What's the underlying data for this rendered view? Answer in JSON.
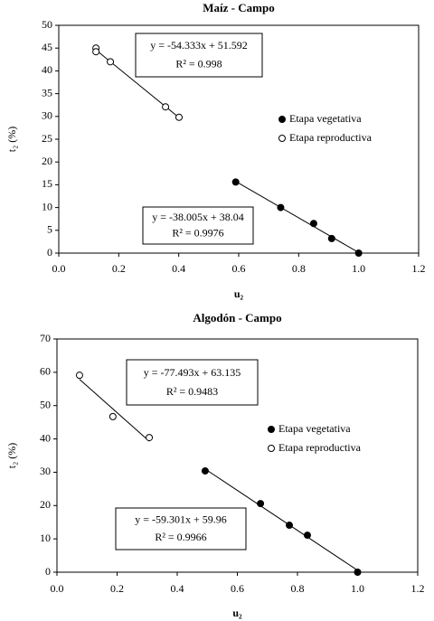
{
  "chart_data": [
    {
      "type": "scatter",
      "title": "Maíz - Campo",
      "x_label": "u₂",
      "y_label": "t₂ (%)",
      "xlim": [
        0,
        1.2
      ],
      "xticks": [
        {
          "value": 0,
          "label": "0.0"
        },
        0.2,
        0.4,
        0.6,
        0.8,
        {
          "value": 1,
          "label": "1.0"
        },
        1.2
      ],
      "ylim": [
        0,
        50
      ],
      "yticks": [
        0,
        5,
        10,
        15,
        20,
        25,
        30,
        35,
        40,
        45,
        50
      ],
      "legend": "right",
      "series": [
        {
          "name": "Etapa vegetativa",
          "color": "#000000",
          "marker": "filled",
          "x": [
            0.59,
            0.74,
            0.85,
            0.91,
            1.0
          ],
          "values": [
            15.6,
            10,
            6.5,
            3.2,
            0
          ],
          "trendline": [
            "y = -38.005x + 38.04",
            "R² = 0.9976"
          ]
        },
        {
          "name": "Etapa reproductiva",
          "color": "#000000",
          "marker": "open",
          "x": [
            0.124,
            0.124,
            0.172,
            0.356,
            0.401
          ],
          "values": [
            45,
            44.2,
            42,
            32.1,
            29.8
          ],
          "trendline": [
            "y = -54.333x + 51.592",
            "R² = 0.998"
          ]
        }
      ]
    },
    {
      "type": "scatter",
      "title": "Algodón - Campo",
      "x_label": "u₂",
      "y_label": "t₂ (%)",
      "xlim": [
        0,
        1.2
      ],
      "xticks": [
        {
          "value": 0,
          "label": "0.0"
        },
        0.2,
        0.4,
        0.6,
        0.8,
        {
          "value": 1,
          "label": "1.0"
        },
        1.2
      ],
      "ylim": [
        0,
        70
      ],
      "yticks": [
        0,
        10,
        20,
        30,
        40,
        50,
        60,
        70
      ],
      "legend": "right",
      "series": [
        {
          "name": "Etapa vegetativa",
          "color": "#000000",
          "marker": "filled",
          "x": [
            0.493,
            0.677,
            0.773,
            0.833,
            1.0
          ],
          "values": [
            30.4,
            20.6,
            14.1,
            11.1,
            0
          ],
          "trendline": [
            "y = -59.301x + 59.96",
            "R² = 0.9966"
          ]
        },
        {
          "name": "Etapa reproductiva",
          "color": "#000000",
          "marker": "open",
          "x": [
            0.075,
            0.186,
            0.307
          ],
          "values": [
            59.1,
            46.7,
            40.4
          ],
          "trendline": [
            "y = -77.493x + 63.135",
            "R² = 0.9483"
          ]
        }
      ]
    }
  ]
}
